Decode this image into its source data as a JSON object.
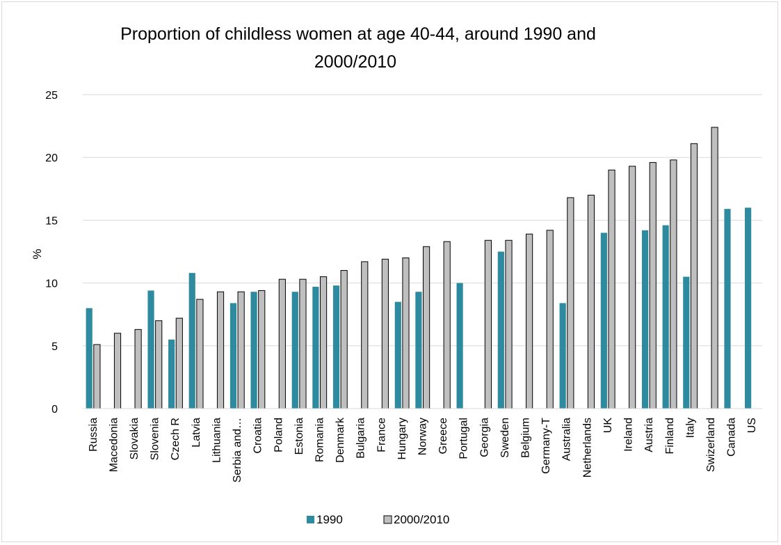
{
  "chart_data": {
    "type": "bar",
    "title": "Proportion of childless women at age 40-44, around 1990 and 2000/2010",
    "title_lines": [
      "Proportion of childless women at age 40-44, around 1990 and",
      "2000/2010"
    ],
    "xlabel": "",
    "ylabel": "%",
    "ylim": [
      0,
      25
    ],
    "yticks": [
      0,
      5,
      10,
      15,
      20,
      25
    ],
    "grid": true,
    "legend_position": "bottom",
    "categories": [
      "Russia",
      "Macedonia",
      "Slovakia",
      "Slovenia",
      "Czech R",
      "Latvia",
      "Lithuania",
      "Serbia and…",
      "Croatia",
      "Poland",
      "Estonia",
      "Romania",
      "Denmark",
      "Bulgaria",
      "France",
      "Hungary",
      "Norway",
      "Greece",
      "Portugal",
      "Georgia",
      "Sweden",
      "Belgium",
      "Germany-T",
      "Australia",
      "Netherlands",
      "UK",
      "Ireland",
      "Austria",
      "Finland",
      "Italy",
      "Swizerland",
      "Canada",
      "US"
    ],
    "series": [
      {
        "name": "1990",
        "color": "#2e8a9e",
        "values": [
          8.0,
          null,
          null,
          9.4,
          5.5,
          10.8,
          null,
          8.4,
          9.3,
          null,
          9.3,
          9.7,
          9.8,
          null,
          null,
          8.5,
          9.3,
          null,
          10.0,
          null,
          12.5,
          null,
          null,
          8.4,
          null,
          14.0,
          null,
          14.2,
          14.6,
          10.5,
          null,
          15.9,
          16.0
        ]
      },
      {
        "name": "2000/2010",
        "color": "#bfbfbf",
        "values": [
          5.1,
          6.0,
          6.3,
          7.0,
          7.2,
          8.7,
          9.3,
          9.3,
          9.4,
          10.3,
          10.3,
          10.5,
          11.0,
          11.7,
          11.9,
          12.0,
          12.9,
          13.3,
          null,
          13.4,
          13.4,
          13.9,
          14.2,
          16.8,
          17.0,
          19.0,
          19.3,
          19.6,
          19.8,
          21.1,
          22.4,
          null,
          null
        ]
      }
    ]
  }
}
